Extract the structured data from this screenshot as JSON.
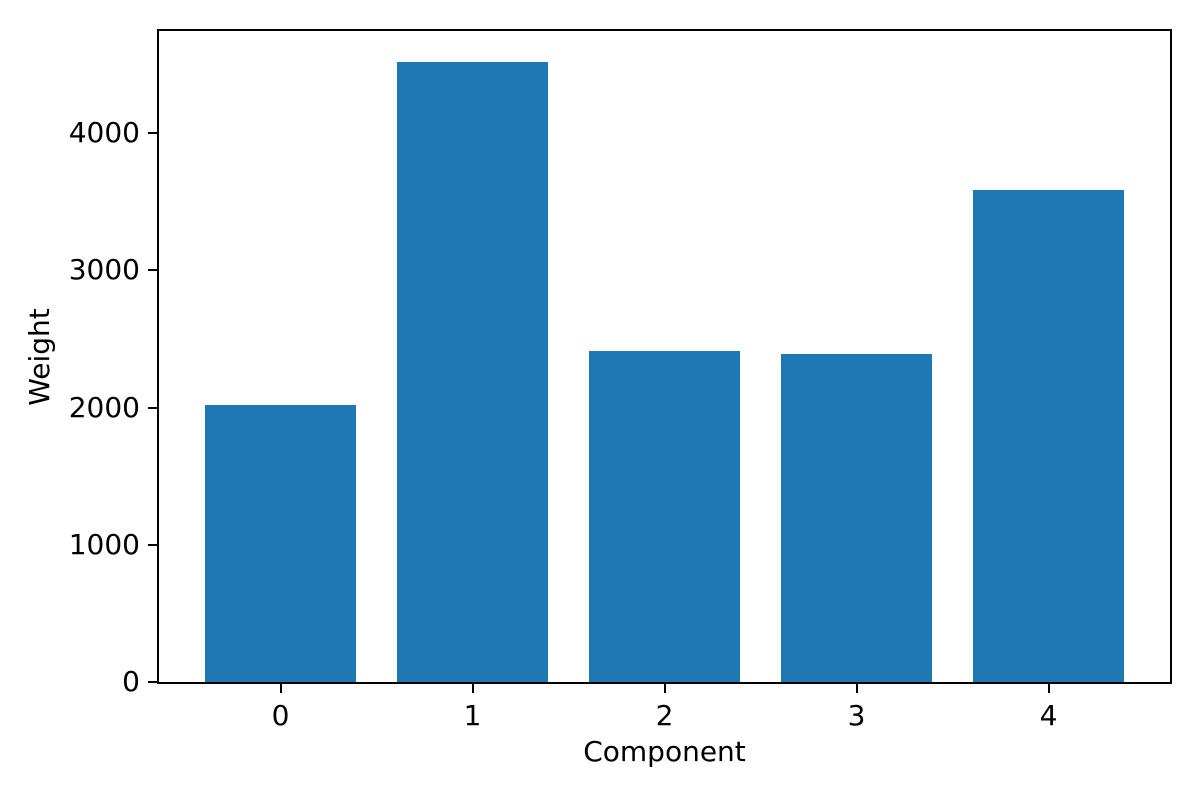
{
  "chart_data": {
    "type": "bar",
    "title": "",
    "xlabel": "Component",
    "ylabel": "Weight",
    "categories": [
      "0",
      "1",
      "2",
      "3",
      "4"
    ],
    "values": [
      2020,
      4520,
      2415,
      2390,
      3590
    ],
    "yticks": [
      0,
      1000,
      2000,
      3000,
      4000
    ],
    "ylim": [
      0,
      4746
    ],
    "xlim_note": "categorical axis, bars centered on integer positions 0-4",
    "bar_color": "#1f77b4",
    "axis_color": "#000000",
    "text_color": "#000000",
    "background_color": "#ffffff",
    "grid": false,
    "legend": "none"
  }
}
